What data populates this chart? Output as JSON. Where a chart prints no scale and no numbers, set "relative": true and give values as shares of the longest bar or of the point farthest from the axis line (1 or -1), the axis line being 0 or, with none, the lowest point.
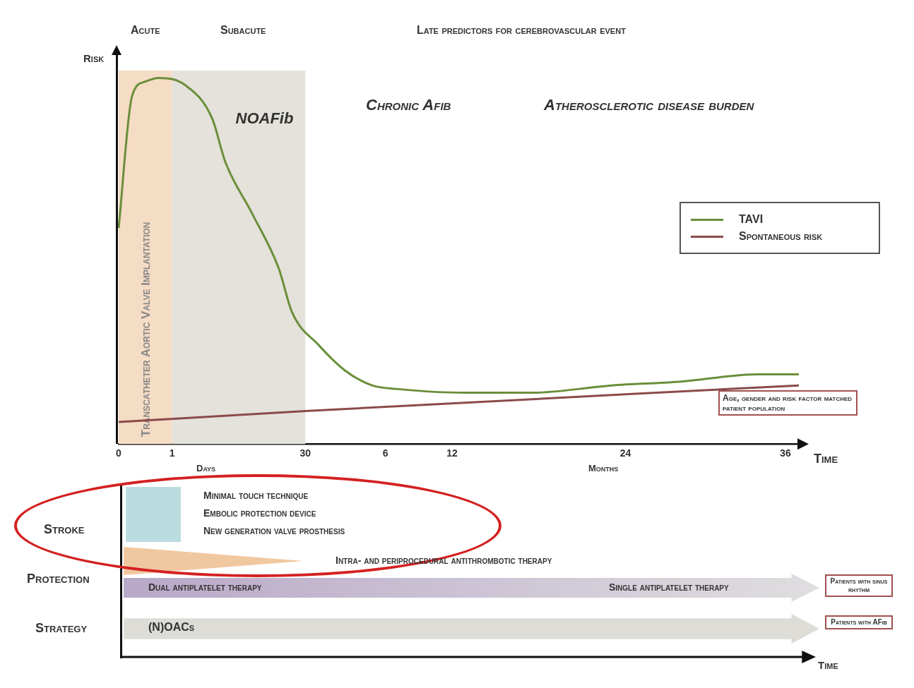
{
  "chart_data": [
    {
      "type": "line",
      "relative": true,
      "ylabel": "Risk",
      "xlabel": "Time",
      "categories": [
        "0",
        null,
        null,
        null,
        "1",
        null,
        null,
        null,
        null,
        null,
        null,
        null,
        null,
        null,
        "30",
        null,
        null,
        null,
        null,
        null,
        "6",
        null,
        null,
        null,
        null,
        "12",
        null,
        null,
        null,
        null,
        null,
        null,
        null,
        null,
        null,
        null,
        null,
        null,
        "24",
        null,
        null,
        null,
        null,
        null,
        null,
        null,
        null,
        null,
        null,
        null,
        "36",
        null
      ],
      "series": [
        {
          "name": "TAVI",
          "color": "#6b8e3a",
          "values": [
            0.59,
            0.95,
            0.99,
            1,
            null,
            0.98,
            null,
            0.89,
            0.77,
            null,
            0.63,
            null,
            0.48,
            0.36,
            null,
            0.27,
            null,
            0.2,
            null,
            0.16,
            null,
            0.15,
            null,
            null,
            null,
            null,
            0.14,
            null,
            null,
            null,
            null,
            0.14,
            null,
            null,
            null,
            null,
            null,
            0.16,
            null,
            null,
            null,
            null,
            0.17,
            null,
            null,
            null,
            null,
            null,
            0.19,
            null,
            null,
            0.19
          ]
        },
        {
          "name": "Spontaneous risk",
          "color": "#8b4a4a",
          "values": [
            0.06,
            null,
            null,
            null,
            null,
            null,
            null,
            null,
            null,
            null,
            null,
            null,
            null,
            null,
            0.09,
            null,
            null,
            null,
            null,
            null,
            null,
            null,
            null,
            null,
            null,
            null,
            null,
            null,
            null,
            null,
            null,
            null,
            null,
            null,
            null,
            null,
            null,
            null,
            null,
            null,
            null,
            null,
            null,
            null,
            null,
            null,
            null,
            null,
            null,
            null,
            null,
            0.16
          ]
        }
      ],
      "bands": [
        {
          "axis": "x",
          "from": "0",
          "to": "1",
          "label": "Transcatheter Aortic Valve Implantation",
          "color": "#f5dcc4"
        },
        {
          "axis": "x",
          "from": "1",
          "to": "30",
          "label": "NOAFib",
          "color": "#e4e2da"
        }
      ],
      "annotations": [
        "Acute",
        "Subacute",
        "Late predictors for cerebrovascular event",
        "Chronic Afib",
        "Atherosclerotic disease burden",
        "Age, gender and risk factor matched patient population",
        "Days",
        "Months"
      ],
      "legend": "right",
      "grid": false,
      "marker": "none",
      "line_style": "solid"
    },
    {
      "type": "other",
      "xlabel": "Time",
      "annotations": [
        "Stroke",
        "Protection",
        "Strategy",
        "Minimal touch technique",
        "Embolic protection device",
        "New generation valve prosthesis",
        "Intra- and periprocedural antithrombotic therapy",
        "Dual antiplatelet therapy",
        "Single antiplatelet therapy",
        "Patients with sinus rhythm",
        "(N)OACs",
        "Patients with AFib"
      ]
    }
  ]
}
